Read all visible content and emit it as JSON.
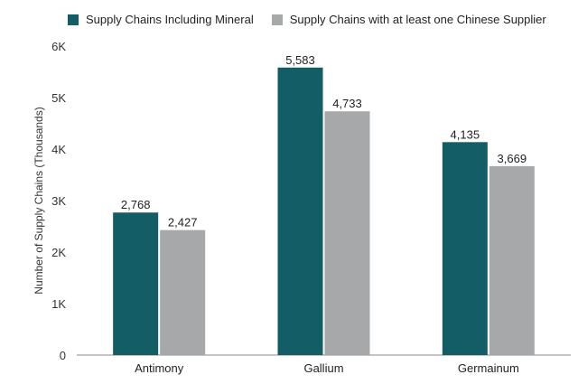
{
  "chart_data": {
    "type": "bar",
    "title": "",
    "xlabel": "",
    "ylabel": "Number of Supply Chains (Thousands)",
    "categories": [
      "Antimony",
      "Gallium",
      "Germainum"
    ],
    "series": [
      {
        "name": "Supply Chains Including Mineral",
        "values": [
          2768,
          5583,
          4135
        ],
        "labels": [
          "2,768",
          "5,583",
          "4,135"
        ],
        "color": "#135e66"
      },
      {
        "name": "Supply Chains with at least one Chinese Supplier",
        "values": [
          2427,
          4733,
          3669
        ],
        "labels": [
          "2,427",
          "4,733",
          "3,669"
        ],
        "color": "#a6a8aa"
      }
    ],
    "ylim": [
      0,
      6000
    ],
    "yticks": [
      0,
      1000,
      2000,
      3000,
      4000,
      5000,
      6000
    ],
    "ytick_labels": [
      "0",
      "1K",
      "2K",
      "3K",
      "4K",
      "5K",
      "6K"
    ],
    "grid": false,
    "legend_position": "top-left"
  }
}
